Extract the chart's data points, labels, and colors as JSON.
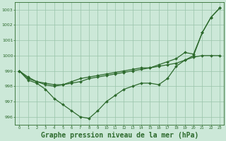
{
  "line1": {
    "x": [
      0,
      1,
      2,
      3,
      4,
      5,
      6,
      7,
      8,
      9,
      10,
      11,
      12,
      13,
      14,
      15,
      16,
      17,
      18,
      19,
      20,
      21,
      22,
      23
    ],
    "y": [
      999.0,
      998.5,
      998.3,
      998.2,
      998.1,
      998.1,
      998.2,
      998.3,
      998.5,
      998.6,
      998.7,
      998.8,
      998.9,
      999.0,
      999.1,
      999.2,
      999.4,
      999.6,
      999.8,
      1000.2,
      1000.1,
      1001.5,
      1002.5,
      1003.1
    ],
    "color": "#2d6a2d",
    "linewidth": 0.9,
    "marker": "D",
    "markersize": 2.0
  },
  "line2": {
    "x": [
      0,
      1,
      2,
      3,
      4,
      5,
      6,
      7,
      8,
      9,
      10,
      11,
      12,
      13,
      14,
      15,
      16,
      17,
      18,
      19,
      20,
      21,
      22,
      23
    ],
    "y": [
      999.0,
      998.6,
      998.3,
      998.1,
      998.0,
      998.1,
      998.3,
      998.5,
      998.6,
      998.7,
      998.8,
      998.9,
      999.0,
      999.1,
      999.2,
      999.2,
      999.3,
      999.4,
      999.5,
      999.7,
      999.9,
      1000.0,
      1000.0,
      1000.0
    ],
    "color": "#2d6a2d",
    "linewidth": 0.9,
    "marker": "D",
    "markersize": 2.0
  },
  "line3": {
    "x": [
      0,
      1,
      2,
      3,
      4,
      5,
      6,
      7,
      8,
      9,
      10,
      11,
      12,
      13,
      14,
      15,
      16,
      17,
      18,
      19,
      20,
      21,
      22,
      23
    ],
    "y": [
      999.0,
      998.4,
      998.2,
      997.8,
      997.2,
      996.8,
      996.4,
      996.0,
      995.9,
      996.4,
      997.0,
      997.4,
      997.8,
      998.0,
      998.2,
      998.2,
      998.1,
      998.5,
      999.3,
      999.7,
      1000.0,
      1001.5,
      1002.5,
      1003.1
    ],
    "color": "#2d6a2d",
    "linewidth": 0.9,
    "marker": "D",
    "markersize": 2.0
  },
  "background_color": "#cce8d8",
  "grid_color": "#99c4aa",
  "axes_color": "#2d6a2d",
  "text_color": "#2d6a2d",
  "title": "Graphe pression niveau de la mer (hPa)",
  "title_fontsize": 7,
  "ylim": [
    995.5,
    1003.5
  ],
  "yticks": [
    996,
    997,
    998,
    999,
    1000,
    1001,
    1002,
    1003
  ],
  "xlim": [
    -0.5,
    23.5
  ],
  "xticks": [
    0,
    1,
    2,
    3,
    4,
    5,
    6,
    7,
    8,
    9,
    10,
    11,
    12,
    13,
    14,
    15,
    16,
    17,
    18,
    19,
    20,
    21,
    22,
    23
  ]
}
